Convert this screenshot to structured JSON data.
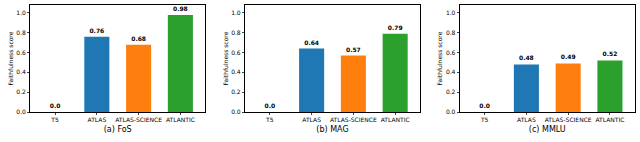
{
  "chart_data": [
    {
      "type": "bar",
      "xlabel": "(a) FoS",
      "ylabel": "Faithfulness score",
      "categories": [
        "T5",
        "ATLAS",
        "ATLAS-SCIENCE",
        "ATLANTIC"
      ],
      "values": [
        0,
        0.76,
        0.68,
        0.98
      ],
      "value_labels": [
        "0.0",
        "0.76",
        "0.68",
        "0.98"
      ],
      "colors": [
        "#1f77b4",
        "#1f77b4",
        "#ff7f0e",
        "#2ca02c"
      ],
      "data_labels": true,
      "ylim": [
        0,
        1.08
      ],
      "yticks": [
        {
          "value": 0,
          "label": "0.0"
        },
        0.2,
        0.4,
        0.6,
        0.8,
        {
          "value": 1,
          "label": "1.0"
        }
      ]
    },
    {
      "type": "bar",
      "xlabel": "(b) MAG",
      "ylabel": "Faithfulness score",
      "categories": [
        "T5",
        "ATLAS",
        "ATLAS-SCIENCE",
        "ATLANTIC"
      ],
      "values": [
        0,
        0.64,
        0.57,
        0.79
      ],
      "value_labels": [
        "0.0",
        "0.64",
        "0.57",
        "0.79"
      ],
      "colors": [
        "#1f77b4",
        "#1f77b4",
        "#ff7f0e",
        "#2ca02c"
      ],
      "data_labels": true,
      "ylim": [
        0,
        1.08
      ],
      "yticks": [
        {
          "value": 0,
          "label": "0.0"
        },
        0.2,
        0.4,
        0.6,
        0.8,
        {
          "value": 1,
          "label": "1.0"
        }
      ]
    },
    {
      "type": "bar",
      "xlabel": "(c) MMLU",
      "ylabel": "Faithfulness score",
      "categories": [
        "T5",
        "ATLAS",
        "ATLAS-SCIENCE",
        "ATLANTIC"
      ],
      "values": [
        0,
        0.48,
        0.49,
        0.52
      ],
      "value_labels": [
        "0.0",
        "0.48",
        "0.49",
        "0.52"
      ],
      "colors": [
        "#1f77b4",
        "#1f77b4",
        "#ff7f0e",
        "#2ca02c"
      ],
      "data_labels": true,
      "ylim": [
        0,
        1.08
      ],
      "yticks": [
        {
          "value": 0,
          "label": "0.0"
        },
        0.2,
        0.4,
        0.6,
        0.8,
        {
          "value": 1,
          "label": "1.0"
        }
      ]
    }
  ]
}
